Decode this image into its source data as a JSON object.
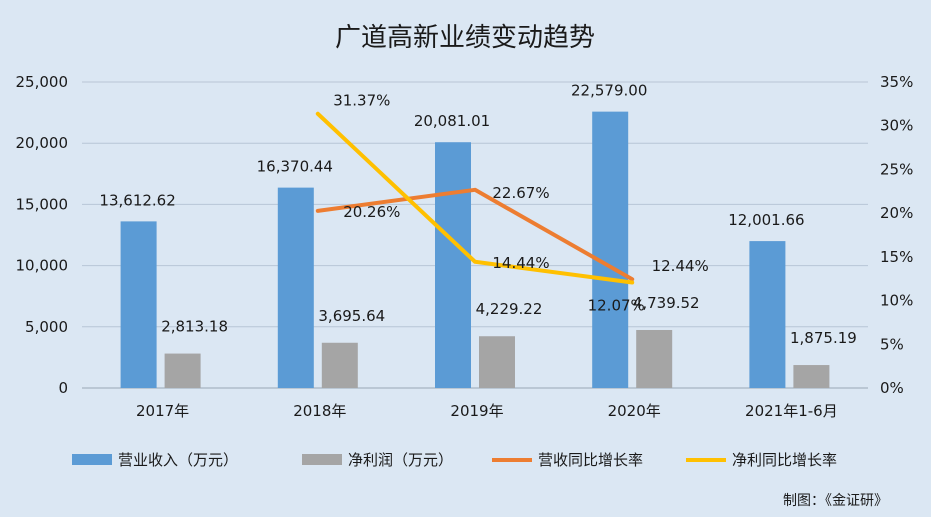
{
  "chart_data": {
    "type": "bar",
    "title": "广道高新业绩变动趋势",
    "categories": [
      "2017年",
      "2018年",
      "2019年",
      "2020年",
      "2021年1-6月"
    ],
    "ylim": [
      0,
      25000
    ],
    "yticks": [
      "0",
      "5,000",
      "10,000",
      "15,000",
      "20,000",
      "25,000"
    ],
    "y2lim": [
      0,
      35
    ],
    "y2ticks": [
      "0%",
      "5%",
      "10%",
      "15%",
      "20%",
      "25%",
      "30%",
      "35%"
    ],
    "grid": true,
    "legend_position": "bottom",
    "bar_series": [
      {
        "name": "营业收入（万元）",
        "color": "#5b9bd5",
        "values": [
          13612.62,
          16370.44,
          20081.01,
          22579.0,
          12001.66
        ],
        "labels": [
          "13,612.62",
          "16,370.44",
          "20,081.01",
          "22,579.00",
          "12,001.66"
        ]
      },
      {
        "name": "净利润（万元）",
        "color": "#a5a5a5",
        "values": [
          2813.18,
          3695.64,
          4229.22,
          4739.52,
          1875.19
        ],
        "labels": [
          "2,813.18",
          "3,695.64",
          "4,229.22",
          "4,739.52",
          "1,875.19"
        ]
      }
    ],
    "line_series": [
      {
        "name": "营收同比增长率",
        "color": "#ed7d31",
        "values": [
          null,
          20.26,
          22.67,
          12.44,
          null
        ],
        "labels": [
          null,
          "20.26%",
          "22.67%",
          "12.44%",
          null
        ]
      },
      {
        "name": "净利同比增长率",
        "color": "#ffc000",
        "values": [
          null,
          31.37,
          14.44,
          12.07,
          null
        ],
        "labels": [
          null,
          "31.37%",
          "14.44%",
          "12.07%",
          null
        ]
      }
    ]
  },
  "source_note": "制图：《金证研》"
}
